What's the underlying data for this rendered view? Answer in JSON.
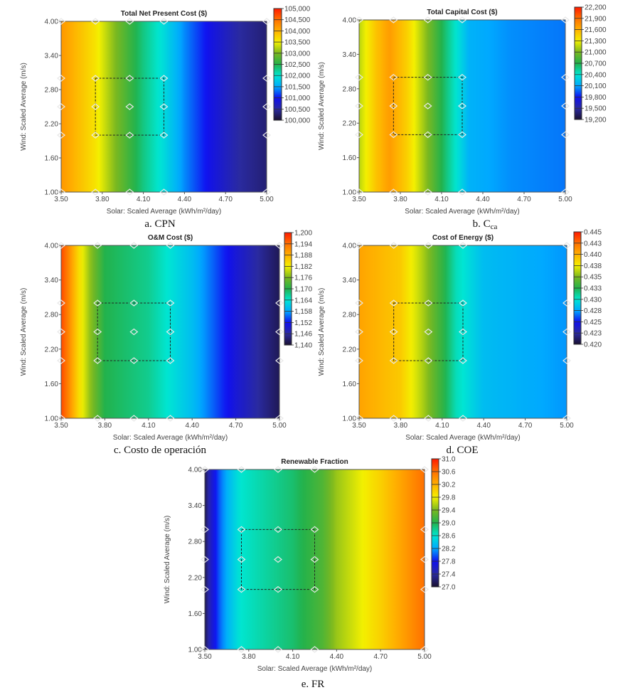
{
  "colormap": [
    "#1a1030",
    "#2a2aa0",
    "#1010f0",
    "#00a8ff",
    "#00e6d2",
    "#22b24c",
    "#7ab820",
    "#f4f000",
    "#ffb000",
    "#ff7000",
    "#ff1a00"
  ],
  "chart_data": [
    {
      "type": "heatmap",
      "title": "Total Net Present Cost ($)",
      "caption": "a. CPN",
      "xlabel": "Solar: Scaled Average (kWh/m²/day)",
      "ylabel": "Wind: Scaled Average (m/s)",
      "xlim": [
        3.5,
        5.0
      ],
      "ylim": [
        1.0,
        4.0
      ],
      "xticks": [
        "3.50",
        "3.80",
        "4.10",
        "4.40",
        "4.70",
        "5.00"
      ],
      "yticks": [
        "1.00",
        "1.60",
        "2.20",
        "2.80",
        "3.40",
        "4.00"
      ],
      "colorbar": {
        "range": [
          100000,
          105000
        ],
        "ticks": [
          "105,000",
          "104,500",
          "104,000",
          "103,500",
          "103,000",
          "102,500",
          "102,000",
          "101,500",
          "101,000",
          "100,500",
          "100,000"
        ]
      },
      "profile_solar": [
        3.5,
        3.75,
        3.9,
        4.1,
        4.25,
        4.4,
        4.6,
        4.8,
        5.0
      ],
      "profile_value": [
        104200,
        103600,
        103000,
        102300,
        101900,
        101400,
        100900,
        100500,
        100300
      ]
    },
    {
      "type": "heatmap",
      "title": "Total Capital Cost ($)",
      "caption": "b. C",
      "caption_sub": "ca",
      "xlabel": "Solar: Scaled Average (kWh/m²/day)",
      "ylabel": "Wind: Scaled Average (m/s)",
      "xlim": [
        3.5,
        5.0
      ],
      "ylim": [
        1.0,
        4.0
      ],
      "xticks": [
        "3.50",
        "3.80",
        "4.10",
        "4.40",
        "4.70",
        "5.00"
      ],
      "yticks": [
        "1.00",
        "1.60",
        "2.20",
        "2.80",
        "3.40",
        "4.00"
      ],
      "colorbar": {
        "range": [
          19200,
          22200
        ],
        "ticks": [
          "22,200",
          "21,900",
          "21,600",
          "21,300",
          "21,000",
          "20,700",
          "20,400",
          "20,100",
          "19,800",
          "19,500",
          "19,200"
        ]
      },
      "profile_solar": [
        3.5,
        3.62,
        3.72,
        3.85,
        4.0,
        4.15,
        4.3,
        4.6,
        5.0
      ],
      "profile_value": [
        21150,
        21500,
        21700,
        21450,
        21000,
        20550,
        20150,
        20050,
        20000
      ]
    },
    {
      "type": "heatmap",
      "title": "O&M Cost ($)",
      "caption": "c. Costo de operación",
      "xlabel": "Solar: Scaled Average (kWh/m²/day)",
      "ylabel": "Wind: Scaled Average (m/s)",
      "xlim": [
        3.5,
        5.0
      ],
      "ylim": [
        1.0,
        4.0
      ],
      "xticks": [
        "3.50",
        "3.80",
        "4.10",
        "4.40",
        "4.70",
        "5.00"
      ],
      "yticks": [
        "1.00",
        "1.60",
        "2.20",
        "2.80",
        "3.40",
        "4.00"
      ],
      "colorbar": {
        "range": [
          1140,
          1200
        ],
        "ticks": [
          "1,200",
          "1,194",
          "1,188",
          "1,182",
          "1,176",
          "1,170",
          "1,164",
          "1,158",
          "1,152",
          "1,146",
          "1,140"
        ]
      },
      "profile_solar": [
        3.5,
        3.55,
        3.62,
        3.7,
        3.8,
        4.1,
        4.4,
        4.7,
        4.85,
        5.0
      ],
      "profile_value": [
        1197,
        1192,
        1184,
        1177,
        1170,
        1167,
        1160,
        1150,
        1146,
        1142
      ]
    },
    {
      "type": "heatmap",
      "title": "Cost of Energy ($)",
      "caption": "d. COE",
      "xlabel": "Solar: Scaled Average (kWh/m²/day)",
      "ylabel": "Wind: Scaled Average (m/s)",
      "xlim": [
        3.5,
        5.0
      ],
      "ylim": [
        1.0,
        4.0
      ],
      "xticks": [
        "3.50",
        "3.80",
        "4.10",
        "4.40",
        "4.70",
        "5.00"
      ],
      "yticks": [
        "1.00",
        "1.60",
        "2.20",
        "2.80",
        "3.40",
        "4.00"
      ],
      "colorbar": {
        "range": [
          0.42,
          0.445
        ],
        "ticks": [
          "0.445",
          "0.443",
          "0.440",
          "0.438",
          "0.435",
          "0.433",
          "0.430",
          "0.428",
          "0.425",
          "0.423",
          "0.420"
        ]
      },
      "profile_solar": [
        3.5,
        3.8,
        3.95,
        4.1,
        4.2,
        4.4,
        5.0
      ],
      "profile_value": [
        0.4405,
        0.439,
        0.4362,
        0.433,
        0.4305,
        0.4283,
        0.4272
      ]
    },
    {
      "type": "heatmap",
      "title": "Renewable Fraction",
      "caption": "e. FR",
      "xlabel": "Solar: Scaled Average (kWh/m²/day)",
      "ylabel": "Wind: Scaled Average (m/s)",
      "xlim": [
        3.5,
        5.0
      ],
      "ylim": [
        1.0,
        4.0
      ],
      "xticks": [
        "3.50",
        "3.80",
        "4.10",
        "4.40",
        "4.70",
        "5.00"
      ],
      "yticks": [
        "1.00",
        "1.60",
        "2.20",
        "2.80",
        "3.40",
        "4.00"
      ],
      "colorbar": {
        "range": [
          27.0,
          31.0
        ],
        "ticks": [
          "31.0",
          "30.6",
          "30.2",
          "29.8",
          "29.4",
          "29.0",
          "28.6",
          "28.2",
          "27.8",
          "27.4",
          "27.0"
        ]
      },
      "profile_solar": [
        3.5,
        3.53,
        3.6,
        3.66,
        3.74,
        4.1,
        4.3,
        4.4,
        4.7,
        5.0
      ],
      "profile_value": [
        27.1,
        27.5,
        28.0,
        28.3,
        28.6,
        28.9,
        29.2,
        29.5,
        30.0,
        30.6
      ]
    }
  ],
  "sensitivity_points": {
    "solar": [
      3.5,
      3.75,
      4.0,
      4.25,
      5.0
    ],
    "wind": [
      1.0,
      2.0,
      2.5,
      3.0,
      4.0
    ]
  },
  "selected_region": {
    "solar": [
      3.75,
      4.25
    ],
    "wind": [
      2.0,
      3.0
    ]
  }
}
